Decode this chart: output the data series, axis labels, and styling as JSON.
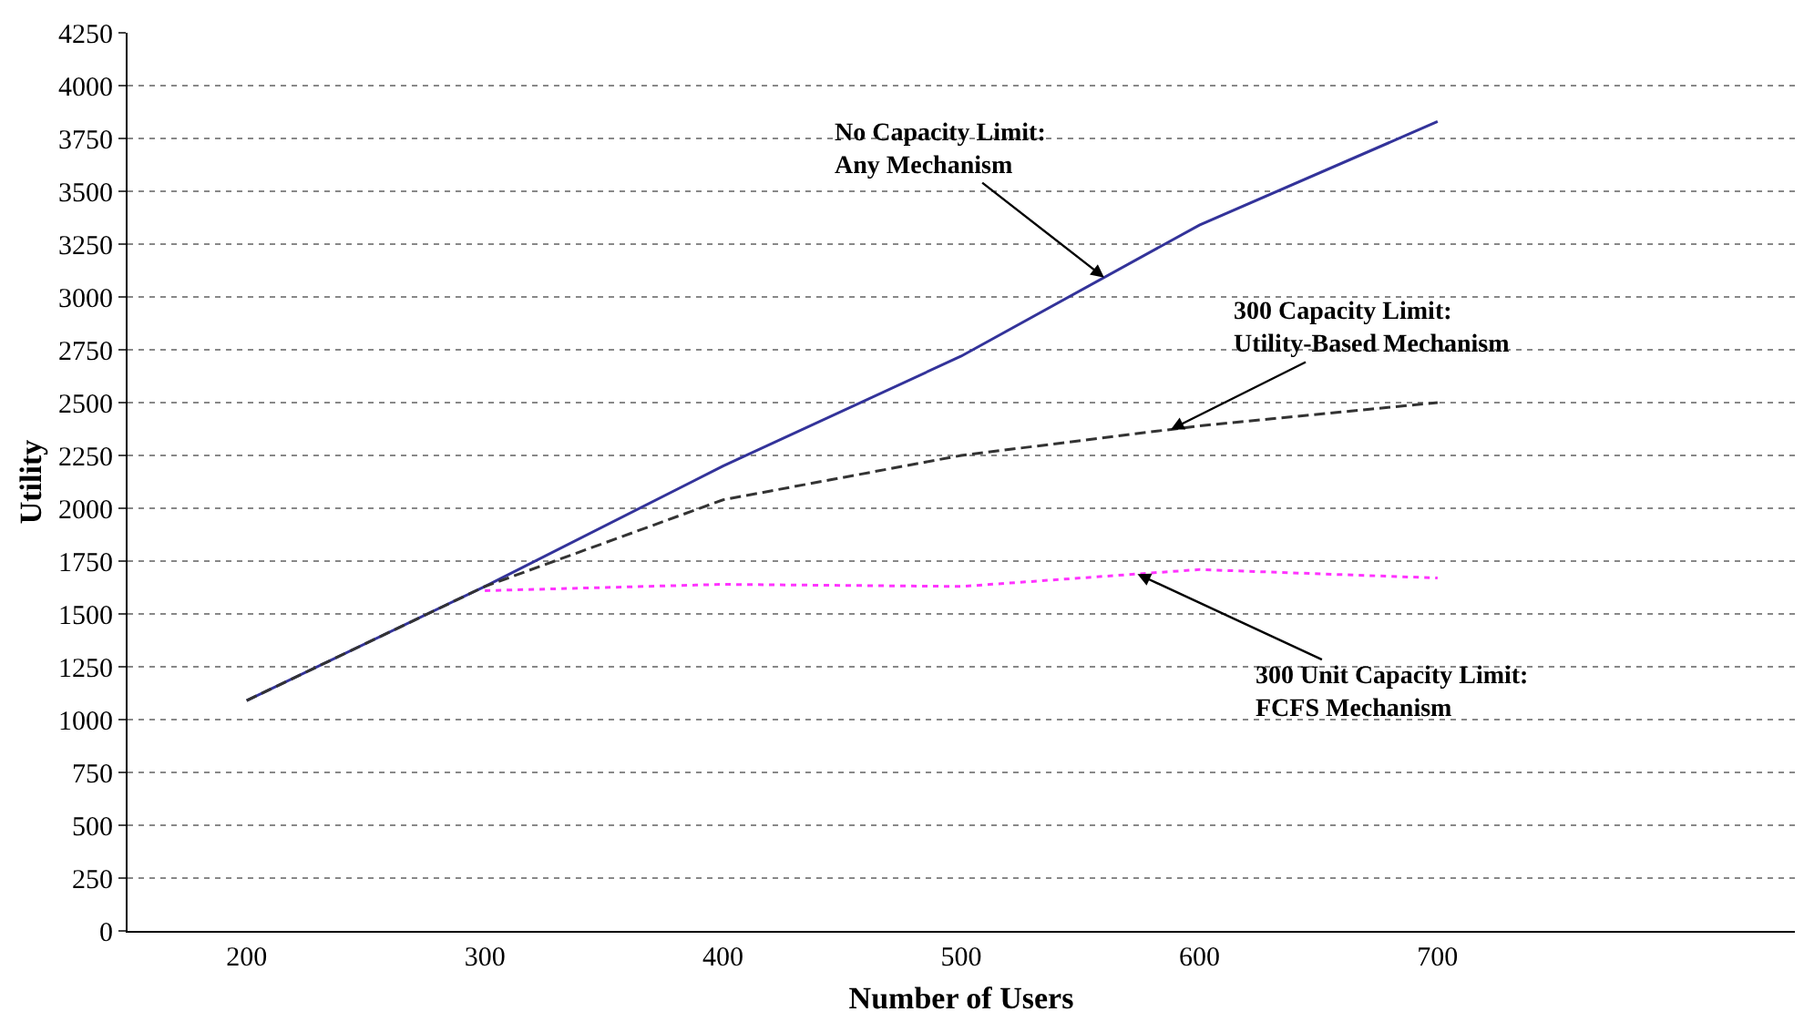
{
  "chart_data": {
    "type": "line",
    "xlabel": "Number of Users",
    "ylabel": "Utility",
    "x": [
      200,
      300,
      400,
      500,
      600,
      700
    ],
    "xlim": [
      150,
      850
    ],
    "xticks": [
      200,
      300,
      400,
      500,
      600,
      700
    ],
    "ylim": [
      0,
      4250
    ],
    "yticks": [
      0,
      250,
      500,
      750,
      1000,
      1250,
      1500,
      1750,
      2000,
      2250,
      2500,
      2750,
      3000,
      3250,
      3500,
      3750,
      4000,
      4250
    ],
    "grid": "y",
    "marker": "none",
    "series": [
      {
        "color": "#33339a",
        "line_style": "solid",
        "values": [
          1090,
          1630,
          2200,
          2720,
          3340,
          3830
        ]
      },
      {
        "color": "#333333",
        "line_style": "dashed",
        "values": [
          1090,
          1630,
          2040,
          2250,
          2390,
          2500
        ]
      },
      {
        "color": "#ff33ff",
        "line_style": "dotted",
        "values": [
          null,
          1610,
          1640,
          1630,
          1710,
          1670
        ]
      }
    ],
    "annotations": [
      {
        "text": "No Capacity Limit:\nAny Mechanism",
        "x": 560,
        "y": 3092
      },
      {
        "text": "300 Capacity Limit:\nUtility-Based Mechanism",
        "x": 588,
        "y": 2373
      },
      {
        "text": "300 Unit Capacity Limit:\nFCFS Mechanism",
        "x": 574,
        "y": 1689
      }
    ]
  }
}
